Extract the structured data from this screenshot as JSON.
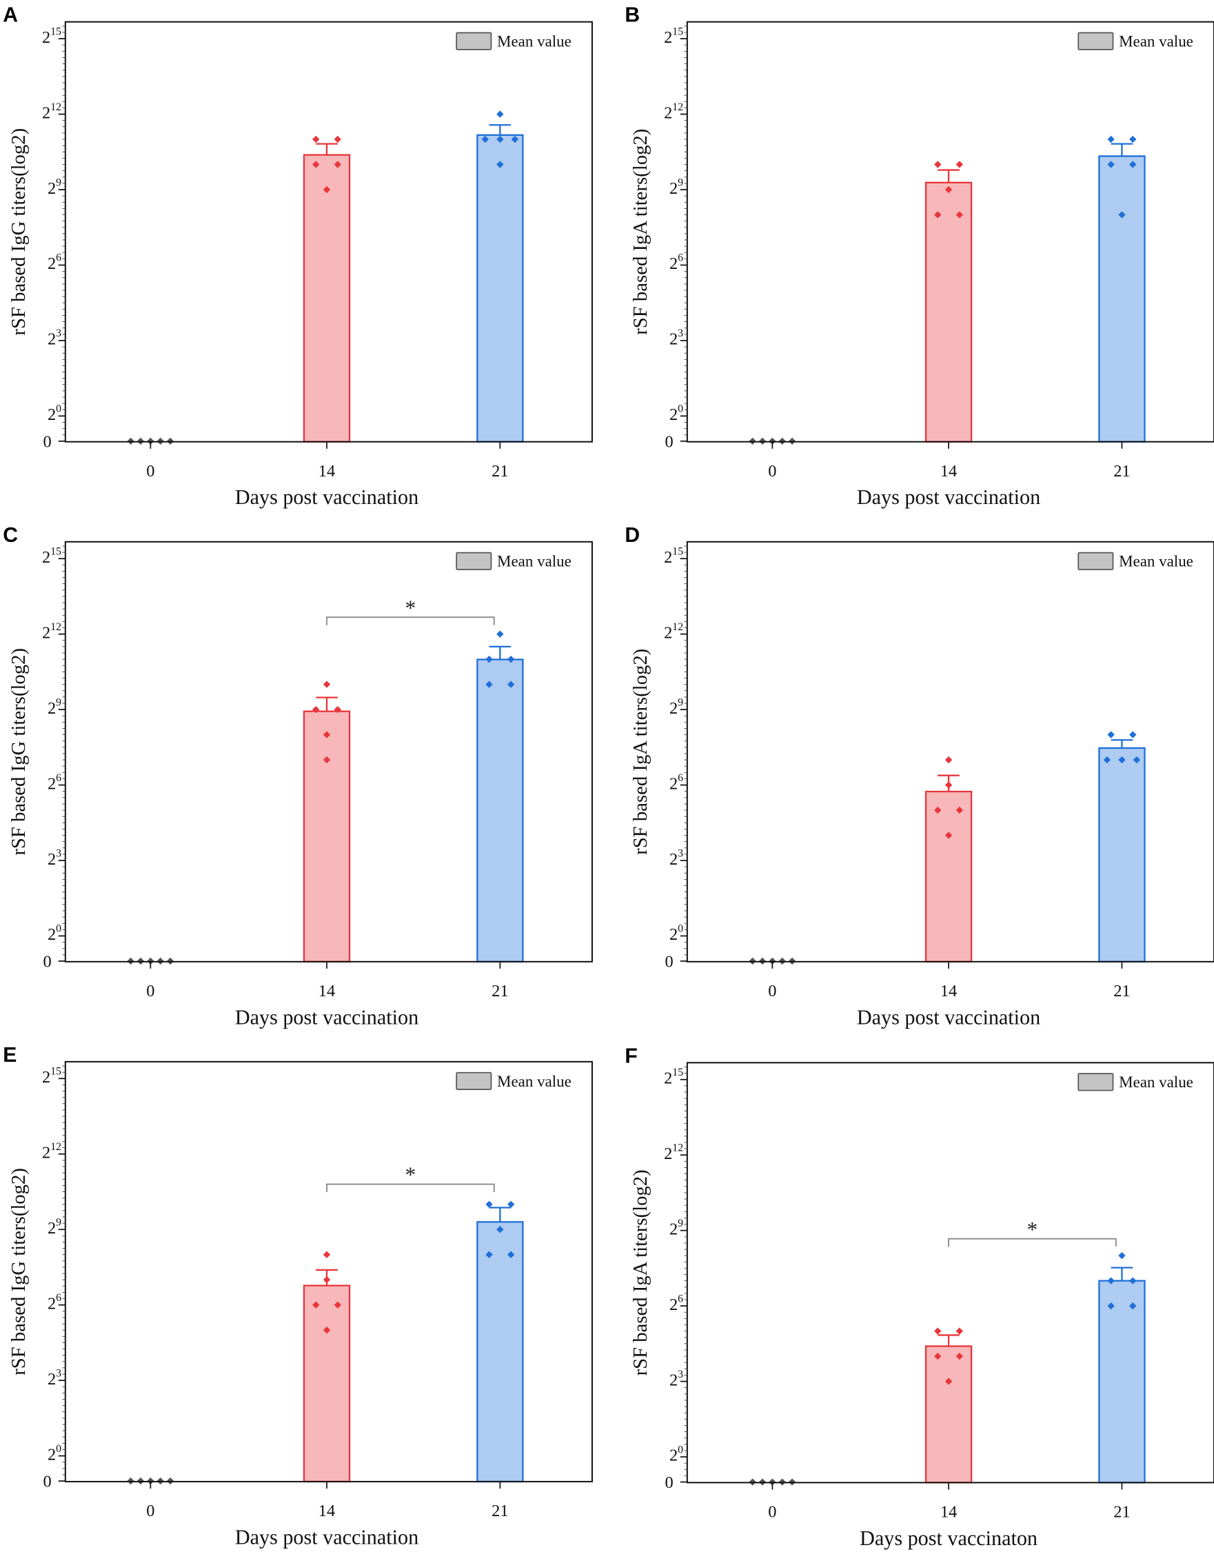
{
  "figure": {
    "legend_label": "Mean value",
    "colors": {
      "day14_fill": "#f8b8ba",
      "day14_stroke": "#e8363c",
      "day21_fill": "#aecbf2",
      "day21_stroke": "#1f6fd8",
      "day0_point": "#555555",
      "legend_fill": "#c4c4c4",
      "bracket": "#8a8a8a"
    }
  },
  "chart_data": [
    {
      "panel": "A",
      "type": "bar",
      "ylabel": "rSF based IgG titers(log2)",
      "xlabel": "Days post vaccination",
      "categories": [
        "0",
        "14",
        "21"
      ],
      "ylim": [
        -1,
        15.67
      ],
      "y_scale": "log2",
      "yticks": [
        {
          "base": "2",
          "exp": "15",
          "value": 15
        },
        {
          "base": "2",
          "exp": "12",
          "value": 12
        },
        {
          "base": "2",
          "exp": "9",
          "value": 9
        },
        {
          "base": "2",
          "exp": "6",
          "value": 6
        },
        {
          "base": "2",
          "exp": "3",
          "value": 3
        },
        {
          "base": "2",
          "exp": "0",
          "value": 0
        },
        {
          "text": "0",
          "value": -1
        }
      ],
      "points": [
        [
          -1,
          -1,
          -1,
          -1,
          -1
        ],
        [
          11,
          11,
          10,
          10,
          9
        ],
        [
          12,
          11,
          11,
          11,
          10
        ]
      ],
      "means": [
        null,
        10.38,
        11.17
      ],
      "error_upper": [
        null,
        10.82,
        11.57
      ],
      "significance": null
    },
    {
      "panel": "B",
      "type": "bar",
      "ylabel": "rSF based IgA titers(log2)",
      "xlabel": "Days post vaccination",
      "categories": [
        "0",
        "14",
        "21"
      ],
      "ylim": [
        -1,
        15.67
      ],
      "y_scale": "log2",
      "yticks": [
        {
          "base": "2",
          "exp": "15",
          "value": 15
        },
        {
          "base": "2",
          "exp": "12",
          "value": 12
        },
        {
          "base": "2",
          "exp": "9",
          "value": 9
        },
        {
          "base": "2",
          "exp": "6",
          "value": 6
        },
        {
          "base": "2",
          "exp": "3",
          "value": 3
        },
        {
          "base": "2",
          "exp": "0",
          "value": 0
        },
        {
          "text": "0",
          "value": -1
        }
      ],
      "points": [
        [
          -1,
          -1,
          -1,
          -1,
          -1
        ],
        [
          10,
          10,
          9,
          8,
          8
        ],
        [
          11,
          11,
          10,
          10,
          8
        ]
      ],
      "means": [
        null,
        9.28,
        10.33
      ],
      "error_upper": [
        null,
        9.78,
        10.82
      ],
      "significance": null
    },
    {
      "panel": "C",
      "type": "bar",
      "ylabel": "rSF based IgG titers(log2)",
      "xlabel": "Days post vaccination",
      "categories": [
        "0",
        "14",
        "21"
      ],
      "ylim": [
        -1,
        15.67
      ],
      "y_scale": "log2",
      "yticks": [
        {
          "base": "2",
          "exp": "15",
          "value": 15
        },
        {
          "base": "2",
          "exp": "12",
          "value": 12
        },
        {
          "base": "2",
          "exp": "9",
          "value": 9
        },
        {
          "base": "2",
          "exp": "6",
          "value": 6
        },
        {
          "base": "2",
          "exp": "3",
          "value": 3
        },
        {
          "base": "2",
          "exp": "0",
          "value": 0
        },
        {
          "text": "0",
          "value": -1
        }
      ],
      "points": [
        [
          -1,
          -1,
          -1,
          -1,
          -1
        ],
        [
          10,
          9,
          9,
          8,
          7
        ],
        [
          12,
          11,
          11,
          10,
          10
        ]
      ],
      "means": [
        null,
        8.93,
        10.99
      ],
      "error_upper": [
        null,
        9.48,
        11.5
      ],
      "significance": {
        "between": [
          "14",
          "21"
        ],
        "label": "*",
        "level": 12.67
      }
    },
    {
      "panel": "D",
      "type": "bar",
      "ylabel": "rSF based IgA titers(log2)",
      "xlabel": "Days post vaccination",
      "categories": [
        "0",
        "14",
        "21"
      ],
      "ylim": [
        -1,
        15.67
      ],
      "y_scale": "log2",
      "yticks": [
        {
          "base": "2",
          "exp": "15",
          "value": 15
        },
        {
          "base": "2",
          "exp": "12",
          "value": 12
        },
        {
          "base": "2",
          "exp": "9",
          "value": 9
        },
        {
          "base": "2",
          "exp": "6",
          "value": 6
        },
        {
          "base": "2",
          "exp": "3",
          "value": 3
        },
        {
          "base": "2",
          "exp": "0",
          "value": 0
        },
        {
          "text": "0",
          "value": -1
        }
      ],
      "points": [
        [
          -1,
          -1,
          -1,
          -1,
          -1
        ],
        [
          7,
          6,
          5,
          5,
          4
        ],
        [
          8,
          8,
          7,
          7,
          7
        ]
      ],
      "means": [
        null,
        5.74,
        7.47
      ],
      "error_upper": [
        null,
        6.38,
        7.79
      ],
      "significance": null
    },
    {
      "panel": "E",
      "type": "bar",
      "ylabel": "rSF based IgG titers(log2)",
      "xlabel": "Days post vaccination",
      "categories": [
        "0",
        "14",
        "21"
      ],
      "ylim": [
        -1,
        15.67
      ],
      "y_scale": "log2",
      "yticks": [
        {
          "base": "2",
          "exp": "15",
          "value": 15
        },
        {
          "base": "2",
          "exp": "12",
          "value": 12
        },
        {
          "base": "2",
          "exp": "9",
          "value": 9
        },
        {
          "base": "2",
          "exp": "6",
          "value": 6
        },
        {
          "base": "2",
          "exp": "3",
          "value": 3
        },
        {
          "base": "2",
          "exp": "0",
          "value": 0
        },
        {
          "text": "0",
          "value": -1
        }
      ],
      "points": [
        [
          -1,
          -1,
          -1,
          -1,
          -1
        ],
        [
          8,
          7,
          6,
          6,
          5
        ],
        [
          10,
          10,
          9,
          8,
          8
        ]
      ],
      "means": [
        null,
        6.77,
        9.3
      ],
      "error_upper": [
        null,
        7.39,
        9.87
      ],
      "significance": {
        "between": [
          "14",
          "21"
        ],
        "label": "*",
        "level": 10.8
      }
    },
    {
      "panel": "F",
      "type": "bar",
      "ylabel": "rSF based IgA titers(log2)",
      "xlabel": "Days post vaccinaton",
      "categories": [
        "0",
        "14",
        "21"
      ],
      "ylim": [
        -1,
        15.67
      ],
      "y_scale": "log2",
      "yticks": [
        {
          "base": "2",
          "exp": "15",
          "value": 15
        },
        {
          "base": "2",
          "exp": "12",
          "value": 12
        },
        {
          "base": "2",
          "exp": "9",
          "value": 9
        },
        {
          "base": "2",
          "exp": "6",
          "value": 6
        },
        {
          "base": "2",
          "exp": "3",
          "value": 3
        },
        {
          "base": "2",
          "exp": "0",
          "value": 0
        },
        {
          "text": "0",
          "value": -1
        }
      ],
      "points": [
        [
          -1,
          -1,
          -1,
          -1,
          -1
        ],
        [
          5,
          5,
          4,
          4,
          3
        ],
        [
          8,
          7,
          7,
          6,
          6
        ]
      ],
      "means": [
        null,
        4.4,
        7.0
      ],
      "error_upper": [
        null,
        4.84,
        7.52
      ],
      "significance": {
        "between": [
          "14",
          "21"
        ],
        "label": "*",
        "level": 8.67
      }
    }
  ]
}
